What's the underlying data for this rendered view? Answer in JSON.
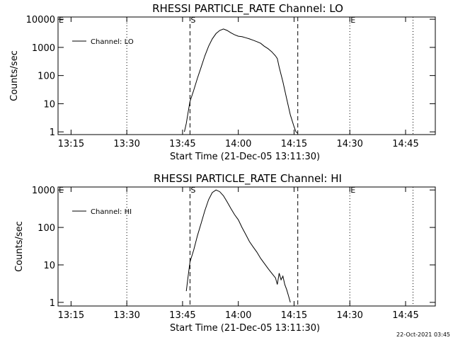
{
  "footer": {
    "timestamp": "22-Oct-2021 03:45"
  },
  "chart_data": [
    {
      "type": "line",
      "title": "RHESSI PARTICLE_RATE Channel: LO",
      "xlabel": "Start Time (21-Dec-05 13:11:30)",
      "ylabel": "Counts/sec",
      "y_scale": "log",
      "xlim": [
        "13:11:30",
        "14:53:00"
      ],
      "ylim": [
        0.8,
        12000
      ],
      "x_ticks": [
        "13:15",
        "13:30",
        "13:45",
        "14:00",
        "14:15",
        "14:30",
        "14:45"
      ],
      "y_ticks": [
        "1",
        "10",
        "100",
        "1000",
        "10000"
      ],
      "legend": {
        "position": "top-left",
        "entries": [
          "Channel: LO"
        ]
      },
      "markers": {
        "dotted": [
          "13:11:30",
          "13:30",
          "14:30",
          "14:47"
        ],
        "dashed": [
          "13:47",
          "14:16"
        ],
        "labels": [
          {
            "text": "E",
            "at": "13:11:30"
          },
          {
            "text": "S",
            "at": "13:47"
          },
          {
            "text": "E",
            "at": "14:30"
          }
        ]
      },
      "series": [
        {
          "name": "Channel: LO",
          "x": [
            "13:45:30",
            "13:46:00",
            "13:46:30",
            "13:47:00",
            "13:48:00",
            "13:49:00",
            "13:50:00",
            "13:51:00",
            "13:52:00",
            "13:53:00",
            "13:54:00",
            "13:55:00",
            "13:56:00",
            "13:57:00",
            "13:58:00",
            "13:59:00",
            "14:00:00",
            "14:01:00",
            "14:02:00",
            "14:03:00",
            "14:04:00",
            "14:05:00",
            "14:06:00",
            "14:07:00",
            "14:08:00",
            "14:09:00",
            "14:10:00",
            "14:10:30",
            "14:11:00",
            "14:12:00",
            "14:13:00",
            "14:14:00",
            "14:15:00",
            "14:15:30",
            "14:16:00"
          ],
          "values": [
            1,
            2,
            5,
            12,
            30,
            80,
            200,
            500,
            1100,
            2000,
            3100,
            4000,
            4500,
            4000,
            3300,
            2800,
            2500,
            2400,
            2200,
            2000,
            1800,
            1600,
            1400,
            1100,
            900,
            700,
            500,
            400,
            200,
            60,
            15,
            4,
            1.5,
            1,
            0.9
          ]
        }
      ]
    },
    {
      "type": "line",
      "title": "RHESSI PARTICLE_RATE Channel: HI",
      "xlabel": "Start Time (21-Dec-05 13:11:30)",
      "ylabel": "Counts/sec",
      "y_scale": "log",
      "xlim": [
        "13:11:30",
        "14:53:00"
      ],
      "ylim": [
        0.8,
        1200
      ],
      "x_ticks": [
        "13:15",
        "13:30",
        "13:45",
        "14:00",
        "14:15",
        "14:30",
        "14:45"
      ],
      "y_ticks": [
        "1",
        "10",
        "100",
        "1000"
      ],
      "legend": {
        "position": "top-left",
        "entries": [
          "Channel: HI"
        ]
      },
      "markers": {
        "dotted": [
          "13:11:30",
          "13:30",
          "14:30",
          "14:47"
        ],
        "dashed": [
          "13:47",
          "14:16"
        ],
        "labels": [
          {
            "text": "E",
            "at": "13:11:30"
          },
          {
            "text": "S",
            "at": "13:47"
          },
          {
            "text": "E",
            "at": "14:30"
          }
        ]
      },
      "series": [
        {
          "name": "Channel: HI",
          "x": [
            "13:46:00",
            "13:46:30",
            "13:47:00",
            "13:48:00",
            "13:49:00",
            "13:50:00",
            "13:51:00",
            "13:52:00",
            "13:53:00",
            "13:54:00",
            "13:55:00",
            "13:56:00",
            "13:57:00",
            "13:58:00",
            "13:59:00",
            "14:00:00",
            "14:01:00",
            "14:02:00",
            "14:03:00",
            "14:04:00",
            "14:05:00",
            "14:06:00",
            "14:07:00",
            "14:08:00",
            "14:09:00",
            "14:10:00",
            "14:10:30",
            "14:11:00",
            "14:11:30",
            "14:12:00",
            "14:12:30",
            "14:13:00",
            "14:13:30",
            "14:14:00"
          ],
          "values": [
            2,
            5,
            12,
            25,
            60,
            130,
            280,
            550,
            850,
            1000,
            900,
            700,
            480,
            320,
            220,
            160,
            100,
            65,
            42,
            30,
            22,
            15,
            11,
            8,
            6,
            4.5,
            3,
            6,
            4,
            5,
            3,
            2.2,
            1.5,
            1
          ]
        }
      ]
    }
  ]
}
